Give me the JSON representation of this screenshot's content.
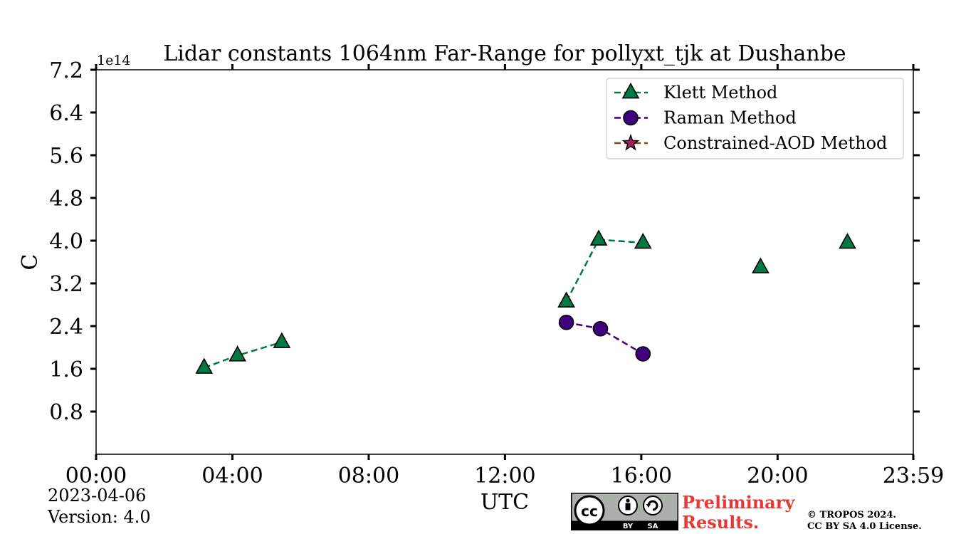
{
  "chart_data": {
    "type": "line",
    "title": "Lidar constants 1064nm Far-Range for pollyxt_tjk at Dushanbe",
    "xlabel": "UTC",
    "ylabel": "C",
    "y_exponent_label": "1e14",
    "y_scale_factor": 100000000000000.0,
    "xlim": [
      0,
      23.983
    ],
    "ylim": [
      0.0,
      7.2
    ],
    "x_ticks": [
      {
        "value": 0,
        "label": "00:00"
      },
      {
        "value": 4,
        "label": "04:00"
      },
      {
        "value": 8,
        "label": "08:00"
      },
      {
        "value": 12,
        "label": "12:00"
      },
      {
        "value": 16,
        "label": "16:00"
      },
      {
        "value": 20,
        "label": "20:00"
      },
      {
        "value": 23.983,
        "label": "23:59"
      }
    ],
    "y_ticks": [
      {
        "value": 0.8,
        "label": "0.8"
      },
      {
        "value": 1.6,
        "label": "1.6"
      },
      {
        "value": 2.4,
        "label": "2.4"
      },
      {
        "value": 3.2,
        "label": "3.2"
      },
      {
        "value": 4.0,
        "label": "4.0"
      },
      {
        "value": 4.8,
        "label": "4.8"
      },
      {
        "value": 5.6,
        "label": "5.6"
      },
      {
        "value": 6.4,
        "label": "6.4"
      },
      {
        "value": 7.2,
        "label": "7.2"
      }
    ],
    "grid": false,
    "legend_position": "top-right",
    "series": [
      {
        "name": "Klett Method",
        "color": "#007a45",
        "marker": "triangle",
        "segments": [
          [
            {
              "x": 3.17,
              "y": 1.62
            },
            {
              "x": 4.15,
              "y": 1.85
            },
            {
              "x": 5.45,
              "y": 2.1
            }
          ],
          [
            {
              "x": 13.8,
              "y": 2.86
            },
            {
              "x": 14.75,
              "y": 4.02
            },
            {
              "x": 16.05,
              "y": 3.96
            }
          ],
          [
            {
              "x": 19.5,
              "y": 3.5
            }
          ],
          [
            {
              "x": 22.05,
              "y": 3.96
            }
          ]
        ]
      },
      {
        "name": "Raman Method",
        "color": "#3f007d",
        "marker": "circle",
        "segments": [
          [
            {
              "x": 13.8,
              "y": 2.47
            },
            {
              "x": 14.8,
              "y": 2.35
            },
            {
              "x": 16.05,
              "y": 1.88
            }
          ]
        ]
      },
      {
        "name": "Constrained-AOD Method",
        "color": "#8b4513",
        "marker_color": "#a0205a",
        "marker": "star",
        "segments": []
      }
    ]
  },
  "footer": {
    "date": "2023-04-06",
    "version": "Version: 4.0",
    "badge_text_by": "BY",
    "badge_text_sa": "SA",
    "preliminary_line1": "Preliminary",
    "preliminary_line2": "Results.",
    "copyright_line1": "© TROPOS 2024.",
    "copyright_line2": "CC BY SA 4.0 License."
  }
}
